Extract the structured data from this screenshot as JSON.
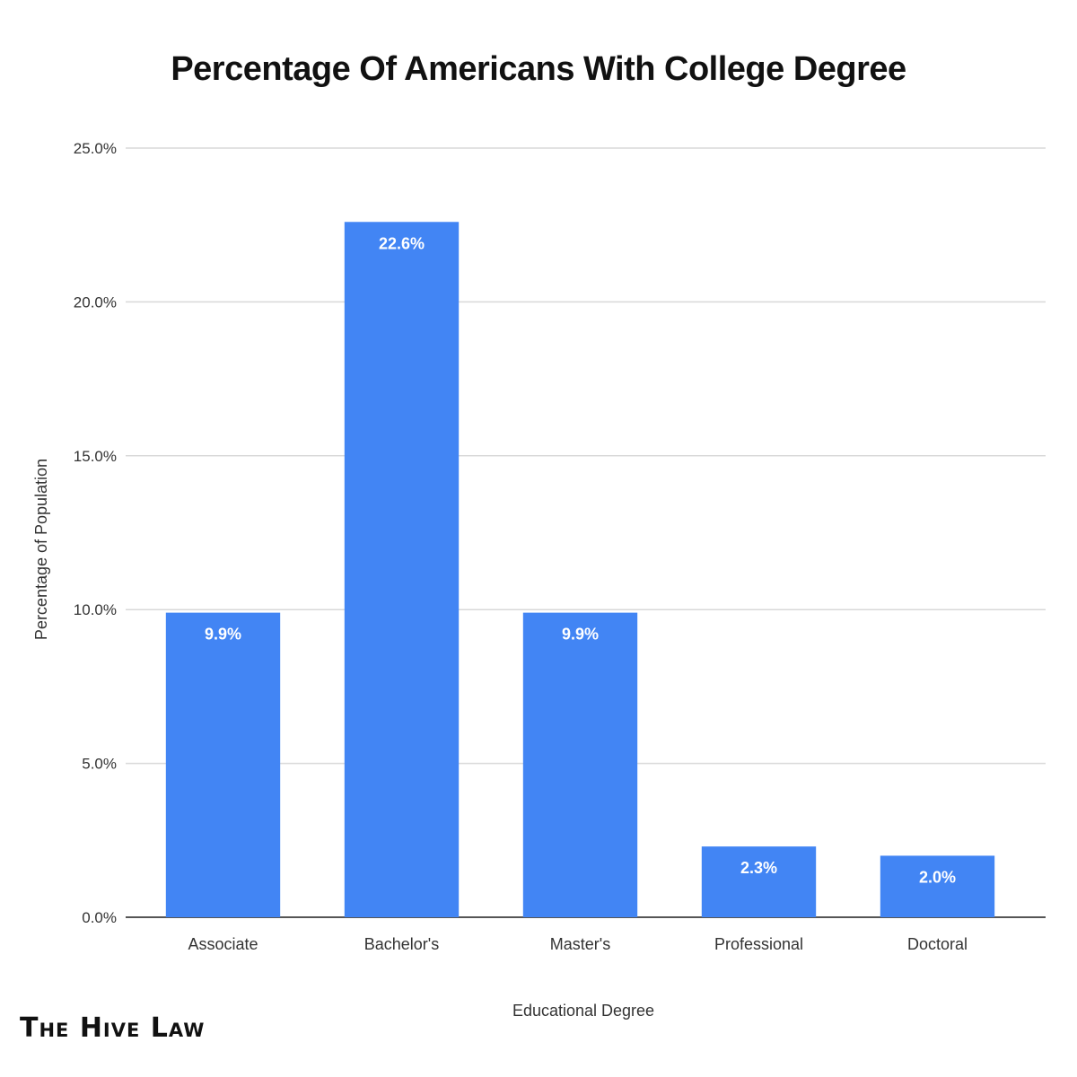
{
  "chart_data": {
    "type": "bar",
    "title": "Percentage Of Americans With College Degree",
    "xlabel": "Educational Degree",
    "ylabel": "Percentage of Population",
    "categories": [
      "Associate",
      "Bachelor's",
      "Master's",
      "Professional",
      "Doctoral"
    ],
    "values": [
      9.9,
      22.6,
      9.9,
      2.3,
      2.0
    ],
    "data_labels": [
      "9.9%",
      "22.6%",
      "9.9%",
      "2.3%",
      "2.0%"
    ],
    "ylim": [
      0,
      25
    ],
    "yticks": [
      0,
      5,
      10,
      15,
      20,
      25
    ],
    "ytick_labels": [
      "0.0%",
      "5.0%",
      "10.0%",
      "15.0%",
      "20.0%",
      "25.0%"
    ],
    "grid": true,
    "legend": "none",
    "colors": {
      "bar": "#4285f4",
      "grid": "#d9d9d9",
      "baseline": "#555555"
    }
  },
  "branding": {
    "logo_text": "The Hive Law"
  }
}
